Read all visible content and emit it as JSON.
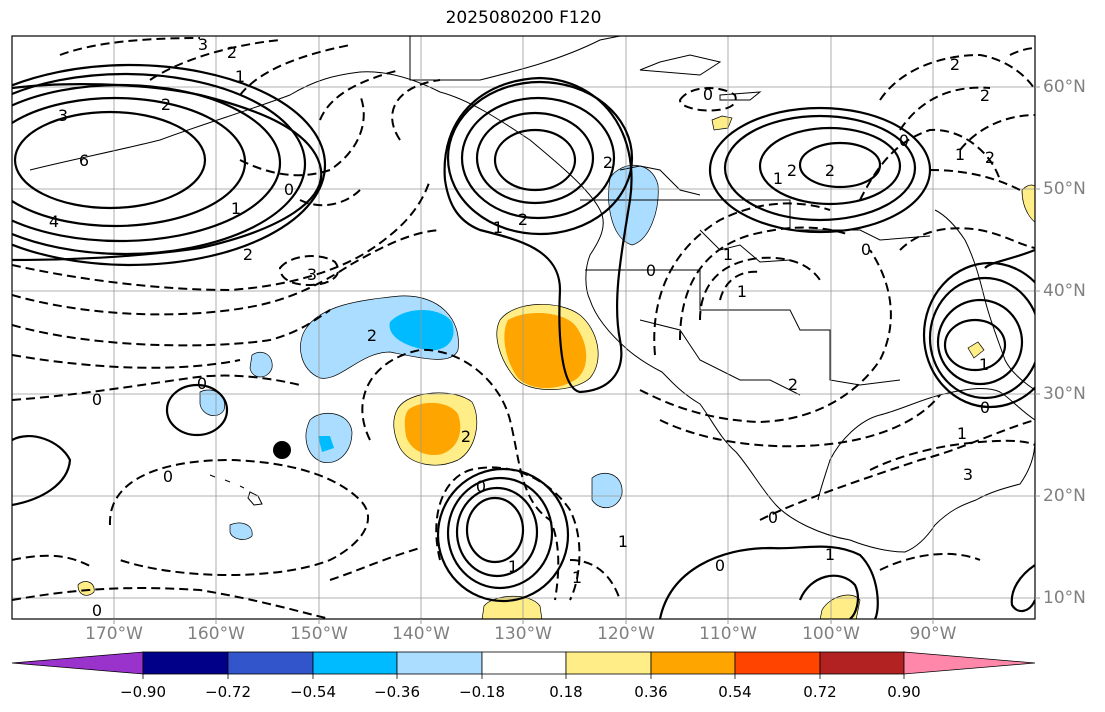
{
  "title": "2025080200 F120",
  "lat_labels": [
    "60°N",
    "50°N",
    "40°N",
    "30°N",
    "20°N",
    "10°N"
  ],
  "lon_labels": [
    "170°W",
    "160°W",
    "150°W",
    "140°W",
    "130°W",
    "120°W",
    "110°W",
    "100°W",
    "90°W"
  ],
  "colorbar": {
    "colors": [
      "#9933cc",
      "#000088",
      "#3355cc",
      "#00bbff",
      "#aaddff",
      "#ffffff",
      "#ffee88",
      "#ffa500",
      "#ff4400",
      "#b22222",
      "#ff88aa"
    ],
    "tick_labels": [
      "−0.90",
      "−0.72",
      "−0.54",
      "−0.36",
      "−0.18",
      "0.18",
      "0.36",
      "0.54",
      "0.72",
      "0.90"
    ],
    "extend": "both"
  },
  "contour_labels": [
    "3",
    "2",
    "1",
    "3",
    "2",
    "6",
    "4",
    "0",
    "1",
    "2",
    "3",
    "2",
    "0",
    "0",
    "0",
    "0",
    "2",
    "1",
    "2",
    "2",
    "2",
    "1",
    "1",
    "2",
    "0",
    "2",
    "2",
    "1",
    "0",
    "1",
    "1",
    "0",
    "0",
    "0",
    "1",
    "0",
    "2",
    "3",
    "2",
    "1",
    "1",
    "0",
    "1",
    "0",
    "1"
  ],
  "marker": "black-dot"
}
